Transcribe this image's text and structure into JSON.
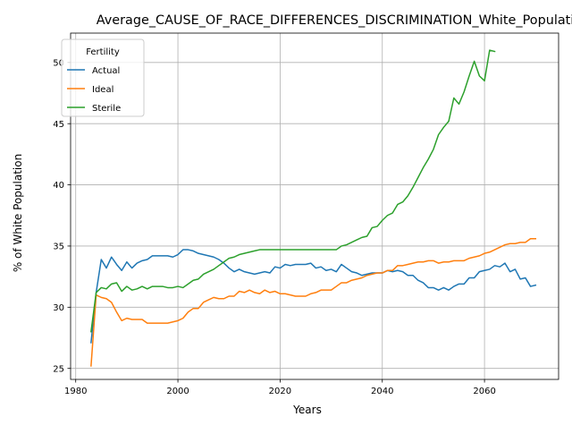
{
  "chart_data": {
    "type": "line",
    "title": "Average_CAUSE_OF_RACE_DIFFERENCES_DISCRIMINATION_White_Population",
    "xlabel": "Years",
    "ylabel": "% of White Population",
    "xlim": [
      1979,
      2074.5
    ],
    "ylim": [
      24.1,
      52.4
    ],
    "xticks": [
      1980,
      2000,
      2020,
      2040,
      2060
    ],
    "yticks": [
      25,
      30,
      35,
      40,
      45,
      50
    ],
    "grid": true,
    "legend": {
      "title": "Fertility",
      "position": "top-left"
    },
    "series": [
      {
        "name": "Actual",
        "color": "#1f77b4",
        "points": [
          [
            1983,
            27.1
          ],
          [
            1984,
            31.2
          ],
          [
            1985,
            33.9
          ],
          [
            1986,
            33.2
          ],
          [
            1987,
            34.1
          ],
          [
            1988,
            33.5
          ],
          [
            1989,
            33.0
          ],
          [
            1990,
            33.7
          ],
          [
            1991,
            33.2
          ],
          [
            1992,
            33.6
          ],
          [
            1993,
            33.8
          ],
          [
            1994,
            33.9
          ],
          [
            1995,
            34.2
          ],
          [
            1996,
            34.2
          ],
          [
            1997,
            34.2
          ],
          [
            1998,
            34.2
          ],
          [
            1999,
            34.1
          ],
          [
            2000,
            34.3
          ],
          [
            2001,
            34.7
          ],
          [
            2002,
            34.7
          ],
          [
            2003,
            34.6
          ],
          [
            2004,
            34.4
          ],
          [
            2005,
            34.3
          ],
          [
            2006,
            34.2
          ],
          [
            2007,
            34.1
          ],
          [
            2008,
            33.9
          ],
          [
            2009,
            33.6
          ],
          [
            2010,
            33.2
          ],
          [
            2011,
            32.9
          ],
          [
            2012,
            33.1
          ],
          [
            2013,
            32.9
          ],
          [
            2014,
            32.8
          ],
          [
            2015,
            32.7
          ],
          [
            2016,
            32.8
          ],
          [
            2017,
            32.9
          ],
          [
            2018,
            32.8
          ],
          [
            2019,
            33.3
          ],
          [
            2020,
            33.2
          ],
          [
            2021,
            33.5
          ],
          [
            2022,
            33.4
          ],
          [
            2023,
            33.5
          ],
          [
            2024,
            33.5
          ],
          [
            2025,
            33.5
          ],
          [
            2026,
            33.6
          ],
          [
            2027,
            33.2
          ],
          [
            2028,
            33.3
          ],
          [
            2029,
            33.0
          ],
          [
            2030,
            33.1
          ],
          [
            2031,
            32.9
          ],
          [
            2032,
            33.5
          ],
          [
            2033,
            33.2
          ],
          [
            2034,
            32.9
          ],
          [
            2035,
            32.8
          ],
          [
            2036,
            32.6
          ],
          [
            2037,
            32.7
          ],
          [
            2038,
            32.8
          ],
          [
            2039,
            32.8
          ],
          [
            2040,
            32.8
          ],
          [
            2041,
            33.0
          ],
          [
            2042,
            32.9
          ],
          [
            2043,
            33.0
          ],
          [
            2044,
            32.9
          ],
          [
            2045,
            32.6
          ],
          [
            2046,
            32.6
          ],
          [
            2047,
            32.2
          ],
          [
            2048,
            32.0
          ],
          [
            2049,
            31.6
          ],
          [
            2050,
            31.6
          ],
          [
            2051,
            31.4
          ],
          [
            2052,
            31.6
          ],
          [
            2053,
            31.4
          ],
          [
            2054,
            31.7
          ],
          [
            2055,
            31.9
          ],
          [
            2056,
            31.9
          ],
          [
            2057,
            32.4
          ],
          [
            2058,
            32.4
          ],
          [
            2059,
            32.9
          ],
          [
            2060,
            33.0
          ],
          [
            2061,
            33.1
          ],
          [
            2062,
            33.4
          ],
          [
            2063,
            33.3
          ],
          [
            2064,
            33.6
          ],
          [
            2065,
            32.9
          ],
          [
            2066,
            33.1
          ],
          [
            2067,
            32.3
          ],
          [
            2068,
            32.4
          ],
          [
            2069,
            31.7
          ],
          [
            2070,
            31.8
          ]
        ]
      },
      {
        "name": "Ideal",
        "color": "#ff7f0e",
        "points": [
          [
            1983,
            25.2
          ],
          [
            1984,
            31.0
          ],
          [
            1985,
            30.8
          ],
          [
            1986,
            30.7
          ],
          [
            1987,
            30.4
          ],
          [
            1988,
            29.6
          ],
          [
            1989,
            28.9
          ],
          [
            1990,
            29.1
          ],
          [
            1991,
            29.0
          ],
          [
            1992,
            29.0
          ],
          [
            1993,
            29.0
          ],
          [
            1994,
            28.7
          ],
          [
            1995,
            28.7
          ],
          [
            1996,
            28.7
          ],
          [
            1997,
            28.7
          ],
          [
            1998,
            28.7
          ],
          [
            1999,
            28.8
          ],
          [
            2000,
            28.9
          ],
          [
            2001,
            29.1
          ],
          [
            2002,
            29.6
          ],
          [
            2003,
            29.9
          ],
          [
            2004,
            29.9
          ],
          [
            2005,
            30.4
          ],
          [
            2006,
            30.6
          ],
          [
            2007,
            30.8
          ],
          [
            2008,
            30.7
          ],
          [
            2009,
            30.7
          ],
          [
            2010,
            30.9
          ],
          [
            2011,
            30.9
          ],
          [
            2012,
            31.3
          ],
          [
            2013,
            31.2
          ],
          [
            2014,
            31.4
          ],
          [
            2015,
            31.2
          ],
          [
            2016,
            31.1
          ],
          [
            2017,
            31.4
          ],
          [
            2018,
            31.2
          ],
          [
            2019,
            31.3
          ],
          [
            2020,
            31.1
          ],
          [
            2021,
            31.1
          ],
          [
            2022,
            31.0
          ],
          [
            2023,
            30.9
          ],
          [
            2024,
            30.9
          ],
          [
            2025,
            30.9
          ],
          [
            2026,
            31.1
          ],
          [
            2027,
            31.2
          ],
          [
            2028,
            31.4
          ],
          [
            2029,
            31.4
          ],
          [
            2030,
            31.4
          ],
          [
            2031,
            31.7
          ],
          [
            2032,
            32.0
          ],
          [
            2033,
            32.0
          ],
          [
            2034,
            32.2
          ],
          [
            2035,
            32.3
          ],
          [
            2036,
            32.4
          ],
          [
            2037,
            32.6
          ],
          [
            2038,
            32.7
          ],
          [
            2039,
            32.8
          ],
          [
            2040,
            32.8
          ],
          [
            2041,
            33.0
          ],
          [
            2042,
            33.0
          ],
          [
            2043,
            33.4
          ],
          [
            2044,
            33.4
          ],
          [
            2045,
            33.5
          ],
          [
            2046,
            33.6
          ],
          [
            2047,
            33.7
          ],
          [
            2048,
            33.7
          ],
          [
            2049,
            33.8
          ],
          [
            2050,
            33.8
          ],
          [
            2051,
            33.6
          ],
          [
            2052,
            33.7
          ],
          [
            2053,
            33.7
          ],
          [
            2054,
            33.8
          ],
          [
            2055,
            33.8
          ],
          [
            2056,
            33.8
          ],
          [
            2057,
            34.0
          ],
          [
            2058,
            34.1
          ],
          [
            2059,
            34.2
          ],
          [
            2060,
            34.4
          ],
          [
            2061,
            34.5
          ],
          [
            2062,
            34.7
          ],
          [
            2063,
            34.9
          ],
          [
            2064,
            35.1
          ],
          [
            2065,
            35.2
          ],
          [
            2066,
            35.2
          ],
          [
            2067,
            35.3
          ],
          [
            2068,
            35.3
          ],
          [
            2069,
            35.6
          ],
          [
            2070,
            35.6
          ]
        ]
      },
      {
        "name": "Sterile",
        "color": "#2ca02c",
        "points": [
          [
            1983,
            28.0
          ],
          [
            1984,
            31.2
          ],
          [
            1985,
            31.6
          ],
          [
            1986,
            31.5
          ],
          [
            1987,
            31.9
          ],
          [
            1988,
            32.0
          ],
          [
            1989,
            31.3
          ],
          [
            1990,
            31.7
          ],
          [
            1991,
            31.4
          ],
          [
            1992,
            31.5
          ],
          [
            1993,
            31.7
          ],
          [
            1994,
            31.5
          ],
          [
            1995,
            31.7
          ],
          [
            1996,
            31.7
          ],
          [
            1997,
            31.7
          ],
          [
            1998,
            31.6
          ],
          [
            1999,
            31.6
          ],
          [
            2000,
            31.7
          ],
          [
            2001,
            31.6
          ],
          [
            2002,
            31.9
          ],
          [
            2003,
            32.2
          ],
          [
            2004,
            32.3
          ],
          [
            2005,
            32.7
          ],
          [
            2006,
            32.9
          ],
          [
            2007,
            33.1
          ],
          [
            2008,
            33.4
          ],
          [
            2009,
            33.7
          ],
          [
            2010,
            34.0
          ],
          [
            2011,
            34.1
          ],
          [
            2012,
            34.3
          ],
          [
            2013,
            34.4
          ],
          [
            2014,
            34.5
          ],
          [
            2015,
            34.6
          ],
          [
            2016,
            34.7
          ],
          [
            2017,
            34.7
          ],
          [
            2018,
            34.7
          ],
          [
            2019,
            34.7
          ],
          [
            2020,
            34.7
          ],
          [
            2021,
            34.7
          ],
          [
            2022,
            34.7
          ],
          [
            2023,
            34.7
          ],
          [
            2024,
            34.7
          ],
          [
            2025,
            34.7
          ],
          [
            2026,
            34.7
          ],
          [
            2027,
            34.7
          ],
          [
            2028,
            34.7
          ],
          [
            2029,
            34.7
          ],
          [
            2030,
            34.7
          ],
          [
            2031,
            34.7
          ],
          [
            2032,
            35.0
          ],
          [
            2033,
            35.1
          ],
          [
            2034,
            35.3
          ],
          [
            2035,
            35.5
          ],
          [
            2036,
            35.7
          ],
          [
            2037,
            35.8
          ],
          [
            2038,
            36.5
          ],
          [
            2039,
            36.6
          ],
          [
            2040,
            37.1
          ],
          [
            2041,
            37.5
          ],
          [
            2042,
            37.7
          ],
          [
            2043,
            38.4
          ],
          [
            2044,
            38.6
          ],
          [
            2045,
            39.1
          ],
          [
            2046,
            39.8
          ],
          [
            2047,
            40.6
          ],
          [
            2048,
            41.4
          ],
          [
            2049,
            42.1
          ],
          [
            2050,
            42.9
          ],
          [
            2051,
            44.1
          ],
          [
            2052,
            44.7
          ],
          [
            2053,
            45.2
          ],
          [
            2054,
            47.1
          ],
          [
            2055,
            46.6
          ],
          [
            2056,
            47.6
          ],
          [
            2057,
            48.9
          ],
          [
            2058,
            50.1
          ],
          [
            2059,
            48.9
          ],
          [
            2060,
            48.5
          ],
          [
            2061,
            51.0
          ],
          [
            2062,
            50.9
          ]
        ]
      }
    ]
  }
}
